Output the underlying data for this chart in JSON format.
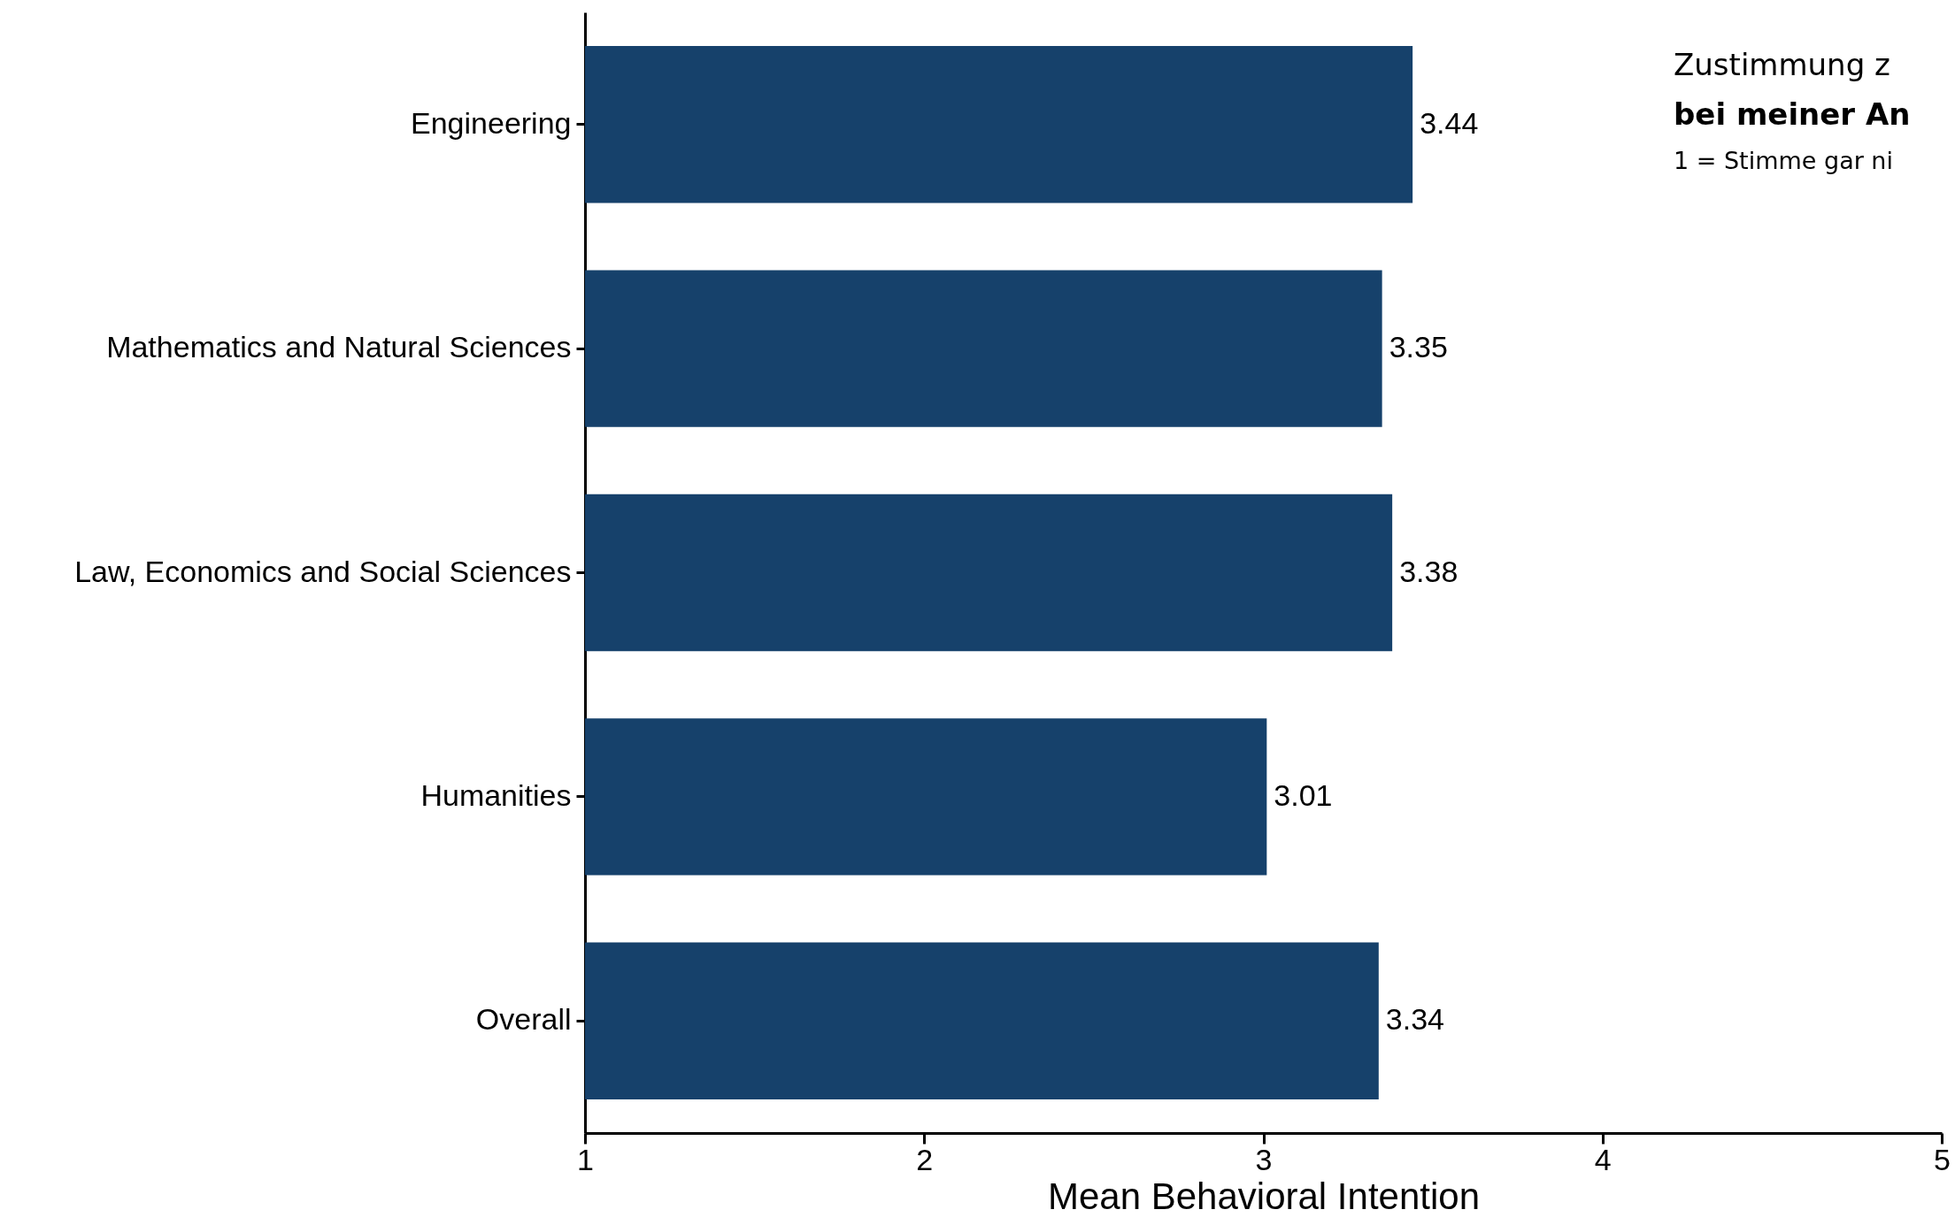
{
  "chart_data": {
    "type": "bar",
    "orientation": "horizontal",
    "xlabel": "Mean Behavioral Intention",
    "categories": [
      "Engineering",
      "Mathematics and Natural Sciences",
      "Law, Economics and Social Sciences",
      "Humanities",
      "Overall"
    ],
    "values": [
      3.44,
      3.35,
      3.38,
      3.01,
      3.34
    ],
    "color": "#16416b",
    "data_labels": true,
    "xlim": [
      1,
      5
    ],
    "xticks": [
      1,
      2,
      3,
      4,
      5
    ],
    "grid": false,
    "annotations": [
      "Zustimmung z",
      "bei meiner An",
      "1 = Stimme gar ni"
    ]
  }
}
